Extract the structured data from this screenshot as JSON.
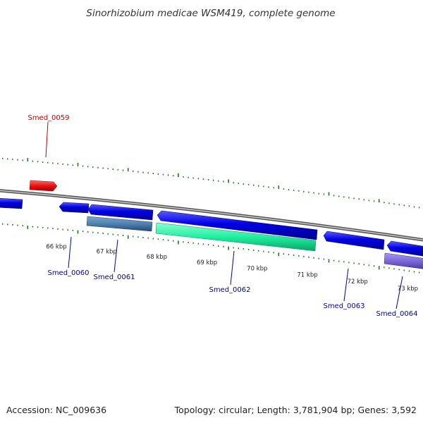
{
  "title": "Sinorhizobium medicae WSM419, complete genome",
  "footer": {
    "accession": "Accession: NC_009636",
    "summary": "Topology: circular; Length: 3,781,904 bp; Genes: 3,592"
  },
  "colors": {
    "tick": "#1a7a1a",
    "backbone": "#8a8a8a",
    "gene_dark_blue": "#0000e6",
    "gene_steel": "#4f81b0",
    "gene_aqua": "#20f0a0",
    "gene_slate": "#7b68d8",
    "gene_red": "#ee1111",
    "label_red": "#cc0000",
    "label_blue": "#0000aa"
  },
  "kbp_labels": [
    {
      "text": "66 kbp",
      "kbp": 66
    },
    {
      "text": "67 kbp",
      "kbp": 67
    },
    {
      "text": "68 kbp",
      "kbp": 68
    },
    {
      "text": "69 kbp",
      "kbp": 69
    },
    {
      "text": "70 kbp",
      "kbp": 70
    },
    {
      "text": "71 kbp",
      "kbp": 71
    },
    {
      "text": "72 kbp",
      "kbp": 72
    },
    {
      "text": "73 kbp",
      "kbp": 73
    }
  ],
  "gene_labels": [
    {
      "name": "Smed_0059",
      "track": "forward",
      "color_key": "label_red"
    },
    {
      "name": "Smed_0060",
      "track": "reverse",
      "color_key": "label_blue"
    },
    {
      "name": "Smed_0061",
      "track": "reverse",
      "color_key": "label_blue"
    },
    {
      "name": "Smed_0062",
      "track": "reverse",
      "color_key": "label_blue"
    },
    {
      "name": "Smed_0063",
      "track": "reverse",
      "color_key": "label_blue"
    },
    {
      "name": "Smed_0064",
      "track": "reverse",
      "color_key": "label_blue"
    }
  ]
}
